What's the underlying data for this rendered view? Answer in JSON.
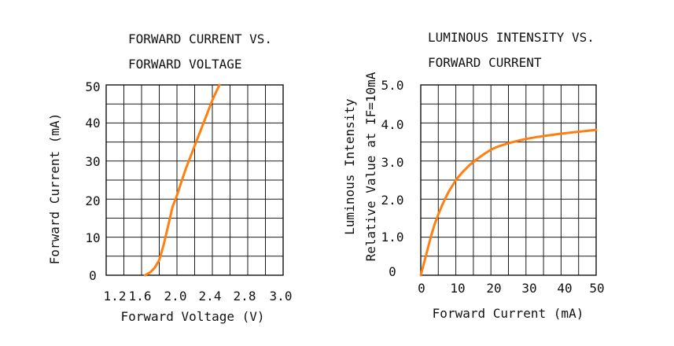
{
  "chart_data": [
    {
      "type": "line",
      "title": [
        "FORWARD CURRENT VS.",
        "FORWARD VOLTAGE"
      ],
      "xlabel": "Forward Voltage (V)",
      "ylabel": "Forward Current (mA)",
      "x_ticks": [
        "1.2",
        "1.6",
        "2.0",
        "2.4",
        "2.8",
        "3.0"
      ],
      "y_ticks": [
        "0",
        "10",
        "20",
        "30",
        "40",
        "50"
      ],
      "xlim": [
        1.2,
        3.2
      ],
      "ylim": [
        0,
        50
      ],
      "grid": true,
      "color": "#ff7f11",
      "series": [
        {
          "x": [
            1.64,
            1.7,
            1.75,
            1.8,
            1.85,
            1.9,
            1.95,
            2.0,
            2.05,
            2.1,
            2.15,
            2.2,
            2.25,
            2.3,
            2.35,
            2.4,
            2.45,
            2.48
          ],
          "y": [
            0,
            0.8,
            2.0,
            4.0,
            8.0,
            13.0,
            18.0,
            21.0,
            24.5,
            28.0,
            31.0,
            34.0,
            37.0,
            40.0,
            43.0,
            46.0,
            48.5,
            50.0
          ]
        }
      ]
    },
    {
      "type": "line",
      "title": [
        "LUMINOUS INTENSITY VS.",
        "FORWARD CURRENT"
      ],
      "xlabel": "Forward Current (mA)",
      "ylabel": [
        "Luminous Intensity",
        "Relative Value at IF=10mA"
      ],
      "x_ticks": [
        "0",
        "10",
        "20",
        "30",
        "40",
        "50"
      ],
      "y_ticks": [
        "0",
        "1.0",
        "2.0",
        "3.0",
        "4.0",
        "5.0"
      ],
      "xlim": [
        0,
        50
      ],
      "ylim": [
        0,
        5
      ],
      "grid": true,
      "color": "#ff7f11",
      "series": [
        {
          "x": [
            0,
            1,
            2,
            3,
            4,
            5,
            6,
            7,
            8,
            10,
            12,
            14,
            16,
            18,
            20,
            22,
            25,
            28,
            30,
            33,
            36,
            40,
            44,
            48,
            50
          ],
          "y": [
            0,
            0.35,
            0.7,
            1.05,
            1.35,
            1.6,
            1.82,
            2.02,
            2.2,
            2.5,
            2.72,
            2.9,
            3.05,
            3.18,
            3.3,
            3.38,
            3.47,
            3.54,
            3.58,
            3.63,
            3.67,
            3.72,
            3.76,
            3.8,
            3.82
          ]
        }
      ]
    }
  ]
}
